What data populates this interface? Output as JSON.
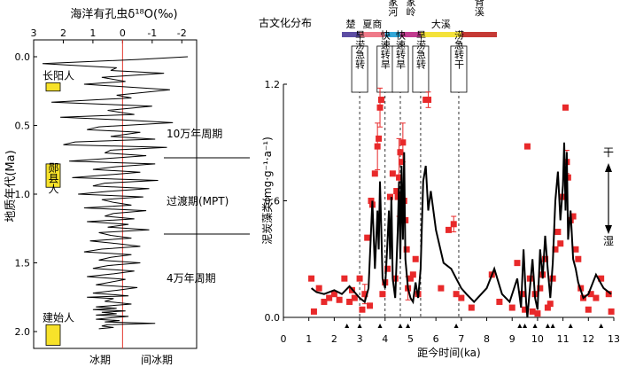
{
  "colors": {
    "axis": "#000000",
    "zero_line": "#e5362d",
    "marker": "#e8292a",
    "errorbar": "#e8292a",
    "line": "#000000",
    "human_box": "#f7e22a",
    "culture_bar": [
      "#5c4da3",
      "#ef7a89",
      "#33a7d8",
      "#c23b8f",
      "#f4e23a",
      "#c53a35"
    ]
  },
  "left_panel": {
    "title": "海洋有孔虫δ¹⁸O(‰)",
    "ylabel": "地质年代(Ma)",
    "x_ticks": [
      "3",
      "2",
      "1",
      "0",
      "-1",
      "-2"
    ],
    "y_ticks": [
      "0.0",
      "0.5",
      "1.0",
      "1.5",
      "2.0"
    ],
    "glacial_label": "冰期",
    "interglacial_label": "间冰期",
    "periods": {
      "p100k": "10万年周期",
      "mpt": "过渡期(MPT)",
      "p40k": "4万年周期"
    },
    "humans": [
      {
        "name": "长阳人",
        "age_top": 0.19,
        "age_bottom": 0.25
      },
      {
        "name": "郧县人",
        "age_top": 0.78,
        "age_bottom": 0.95
      },
      {
        "name": "建始人",
        "age_top": 1.95,
        "age_bottom": 2.1
      }
    ]
  },
  "right_panel": {
    "culture_title": "古文化分布",
    "cultures": [
      "楚",
      "夏商",
      "石家河",
      "屈家岭",
      "大溪",
      "城背溪"
    ],
    "events": [
      "旱涝急转",
      "快速转旱",
      "快速转旱",
      "旱涝急转",
      "涝急转干"
    ],
    "ylabel": "泥炭藻类(mg·g⁻¹·a⁻¹)",
    "xlabel": "距今时间(ka)",
    "x_ticks": [
      "0",
      "1",
      "2",
      "3",
      "4",
      "5",
      "6",
      "7",
      "8",
      "9",
      "10",
      "11",
      "12",
      "13"
    ],
    "y_ticks": [
      "0.0",
      "0.6",
      "1.2"
    ],
    "dry_label": "干",
    "wet_label": "湿"
  },
  "chart_data": [
    {
      "type": "line",
      "title": "海洋有孔虫δ¹⁸O(‰)",
      "xlabel": "海洋有孔虫δ¹⁸O(‰)",
      "ylabel": "地质年代(Ma)",
      "xlim": [
        3,
        -2.5
      ],
      "ylim": [
        0,
        2.0
      ],
      "series": [
        {
          "x": [
            -2.2,
            -0.5,
            2.7,
            0.2,
            0.4,
            -1.4,
            0.7,
            -0.1,
            1.3,
            -1.6,
            0.2,
            -0.3,
            2.4,
            -1.0,
            0.5,
            -0.4,
            2.1,
            0.0,
            -1.7,
            0.8,
            1.2,
            -0.6,
            0.4,
            -1.1,
            1.6,
            2.0,
            -1.5,
            0.4,
            0.6,
            -0.8,
            0.5,
            1.8,
            -1.1,
            0.2,
            1.0,
            -0.6,
            0.5,
            1.7,
            -1.2,
            0.6,
            1.0,
            -0.9,
            0.5,
            1.5,
            -0.7,
            0.7,
            0.3,
            -0.3,
            1.3,
            -0.8,
            0.3,
            0.6,
            -0.4,
            1.2,
            -0.2,
            0.5,
            -0.9,
            0.8,
            0.4,
            -0.3,
            1.1,
            0.2,
            -0.6,
            0.7,
            1.3,
            -0.3,
            0.4,
            0.8,
            -0.6,
            0.5,
            1.0,
            -0.4,
            0.3,
            1.2,
            -0.1,
            0.4,
            0.9,
            -0.5,
            0.2,
            1.0,
            -0.2,
            1.2,
            0.3,
            0.6,
            -0.3,
            0.9,
            0.2,
            1.0,
            -0.1,
            0.7,
            0.2,
            0.9,
            -0.2,
            0.4,
            0.9,
            0.1,
            0.6,
            -1.1,
            0.5,
            0.7,
            0.3,
            0.8
          ],
          "y": [
            0.0,
            0.02,
            0.05,
            0.08,
            0.1,
            0.12,
            0.15,
            0.18,
            0.2,
            0.24,
            0.28,
            0.3,
            0.33,
            0.36,
            0.39,
            0.42,
            0.44,
            0.46,
            0.48,
            0.51,
            0.53,
            0.55,
            0.58,
            0.6,
            0.62,
            0.64,
            0.66,
            0.68,
            0.7,
            0.72,
            0.74,
            0.76,
            0.78,
            0.8,
            0.82,
            0.84,
            0.86,
            0.88,
            0.9,
            0.92,
            0.94,
            0.96,
            0.98,
            1.0,
            1.02,
            1.04,
            1.06,
            1.08,
            1.1,
            1.12,
            1.14,
            1.16,
            1.18,
            1.2,
            1.22,
            1.24,
            1.26,
            1.28,
            1.3,
            1.32,
            1.34,
            1.36,
            1.38,
            1.4,
            1.42,
            1.44,
            1.46,
            1.48,
            1.5,
            1.52,
            1.54,
            1.56,
            1.58,
            1.6,
            1.62,
            1.64,
            1.66,
            1.68,
            1.7,
            1.72,
            1.74,
            1.75,
            1.76,
            1.78,
            1.8,
            1.82,
            1.83,
            1.84,
            1.85,
            1.86,
            1.87,
            1.88,
            1.89,
            1.9,
            1.91,
            1.92,
            1.93,
            1.94,
            1.95,
            1.96,
            1.97,
            1.98
          ]
        }
      ]
    },
    {
      "type": "scatter",
      "xlabel": "距今时间(ka)",
      "ylabel": "泥炭藻类(mg·g⁻¹·a⁻¹)",
      "xlim": [
        0,
        13
      ],
      "ylim": [
        0,
        1.2
      ],
      "series": [
        {
          "kind": "points",
          "points": [
            [
              1.1,
              0.2
            ],
            [
              1.2,
              0.03
            ],
            [
              1.4,
              0.15
            ],
            [
              1.6,
              0.08
            ],
            [
              1.8,
              0.1
            ],
            [
              2.0,
              0.12
            ],
            [
              2.2,
              0.09
            ],
            [
              2.4,
              0.2
            ],
            [
              2.6,
              0.08
            ],
            [
              2.7,
              0.14
            ],
            [
              2.8,
              0.1
            ],
            [
              3.0,
              0.2
            ],
            [
              3.1,
              0.04
            ],
            [
              3.2,
              0.12
            ],
            [
              3.3,
              0.41
            ],
            [
              3.4,
              0.06
            ],
            [
              3.45,
              0.6
            ],
            [
              3.5,
              0.58
            ],
            [
              3.6,
              0.74
            ],
            [
              3.7,
              0.88
            ],
            [
              3.75,
              0.92
            ],
            [
              3.8,
              1.08
            ],
            [
              3.85,
              1.12
            ],
            [
              3.9,
              0.12
            ],
            [
              4.0,
              0.18
            ],
            [
              4.1,
              0.25
            ],
            [
              4.2,
              0.62
            ],
            [
              4.3,
              0.74
            ],
            [
              4.4,
              0.2
            ],
            [
              4.45,
              0.65
            ],
            [
              4.5,
              0.62
            ],
            [
              4.55,
              0.72
            ],
            [
              4.6,
              0.85
            ],
            [
              4.65,
              0.8
            ],
            [
              4.7,
              0.9
            ],
            [
              4.75,
              0.6
            ],
            [
              4.8,
              0.5
            ],
            [
              4.85,
              0.35
            ],
            [
              4.9,
              0.15
            ],
            [
              5.0,
              0.2
            ],
            [
              5.1,
              0.22
            ],
            [
              5.2,
              0.3
            ],
            [
              5.3,
              0.12
            ],
            [
              5.6,
              1.12
            ],
            [
              5.7,
              1.12
            ],
            [
              6.2,
              0.15
            ],
            [
              6.5,
              0.45
            ],
            [
              6.7,
              0.48
            ],
            [
              6.8,
              0.12
            ],
            [
              7.0,
              0.1
            ],
            [
              7.4,
              0.05
            ],
            [
              8.2,
              0.22
            ],
            [
              8.5,
              0.08
            ],
            [
              9.0,
              0.05
            ],
            [
              9.2,
              0.28
            ],
            [
              9.4,
              0.12
            ],
            [
              9.5,
              0.04
            ],
            [
              9.6,
              0.88
            ],
            [
              9.7,
              0.2
            ],
            [
              9.8,
              0.03
            ],
            [
              9.9,
              0.12
            ],
            [
              10.0,
              0.02
            ],
            [
              10.1,
              0.15
            ],
            [
              10.2,
              0.22
            ],
            [
              10.3,
              0.3
            ],
            [
              10.4,
              0.05
            ],
            [
              10.5,
              0.07
            ],
            [
              10.6,
              0.2
            ],
            [
              10.7,
              0.35
            ],
            [
              10.8,
              0.44
            ],
            [
              10.9,
              0.38
            ],
            [
              11.0,
              0.62
            ],
            [
              11.1,
              1.08
            ],
            [
              11.15,
              0.8
            ],
            [
              11.2,
              0.72
            ],
            [
              11.3,
              0.5
            ],
            [
              11.4,
              0.52
            ],
            [
              11.5,
              0.35
            ],
            [
              11.6,
              0.3
            ],
            [
              11.7,
              0.15
            ],
            [
              11.8,
              0.1
            ],
            [
              12.0,
              0.04
            ],
            [
              12.1,
              0.12
            ],
            [
              12.3,
              0.1
            ],
            [
              12.5,
              0.2
            ],
            [
              12.8,
              0.12
            ],
            [
              12.9,
              0.03
            ]
          ]
        },
        {
          "kind": "line",
          "x": [
            1.1,
            1.3,
            1.6,
            2.0,
            2.3,
            2.6,
            2.8,
            3.0,
            3.2,
            3.35,
            3.5,
            3.6,
            3.7,
            3.75,
            3.8,
            3.85,
            3.9,
            4.0,
            4.1,
            4.15,
            4.2,
            4.25,
            4.3,
            4.4,
            4.5,
            4.55,
            4.6,
            4.65,
            4.7,
            4.75,
            4.8,
            4.9,
            5.0,
            5.1,
            5.2,
            5.3,
            5.4,
            5.5,
            5.6,
            5.7,
            5.8,
            6.0,
            6.3,
            6.6,
            6.8,
            7.0,
            7.2,
            7.5,
            8.0,
            8.3,
            8.6,
            8.9,
            9.2,
            9.35,
            9.45,
            9.55,
            9.6,
            9.7,
            9.8,
            9.9,
            10.0,
            10.1,
            10.2,
            10.3,
            10.4,
            10.5,
            10.6,
            10.7,
            10.8,
            10.9,
            11.0,
            11.05,
            11.1,
            11.15,
            11.2,
            11.3,
            11.4,
            11.5,
            11.6,
            11.8,
            12.0,
            12.3,
            12.6,
            12.9
          ],
          "y": [
            0.15,
            0.13,
            0.12,
            0.14,
            0.12,
            0.16,
            0.13,
            0.1,
            0.08,
            0.15,
            0.6,
            0.25,
            0.55,
            0.35,
            0.7,
            0.45,
            0.2,
            0.15,
            0.4,
            0.55,
            0.3,
            0.62,
            0.2,
            0.1,
            0.45,
            0.7,
            0.3,
            0.78,
            0.4,
            0.85,
            0.3,
            0.15,
            0.1,
            0.08,
            0.18,
            0.1,
            0.25,
            0.7,
            0.78,
            0.55,
            0.65,
            0.45,
            0.28,
            0.25,
            0.2,
            0.15,
            0.12,
            0.08,
            0.15,
            0.25,
            0.12,
            0.08,
            0.2,
            0.05,
            0.35,
            0.08,
            0.0,
            0.15,
            0.3,
            0.1,
            0.04,
            0.35,
            0.2,
            0.42,
            0.25,
            0.1,
            0.28,
            0.6,
            0.75,
            0.5,
            0.68,
            0.9,
            0.55,
            0.85,
            0.4,
            0.55,
            0.3,
            0.25,
            0.18,
            0.1,
            0.12,
            0.22,
            0.15,
            0.12
          ]
        }
      ],
      "error_bars": [
        {
          "x": 3.8,
          "y": 1.08,
          "err": 0.1
        },
        {
          "x": 3.7,
          "y": 0.88,
          "err": 0.12
        },
        {
          "x": 4.7,
          "y": 0.9,
          "err": 0.1
        },
        {
          "x": 4.55,
          "y": 0.72,
          "err": 0.2
        },
        {
          "x": 5.7,
          "y": 1.12,
          "err": 0.04
        },
        {
          "x": 6.7,
          "y": 0.48,
          "err": 0.04
        },
        {
          "x": 11.15,
          "y": 0.8,
          "err": 0.06
        },
        {
          "x": 3.2,
          "y": 0.12,
          "err": 0.05
        },
        {
          "x": 4.9,
          "y": 0.15,
          "err": 0.06
        }
      ],
      "event_lines_x": [
        3.0,
        4.0,
        4.6,
        5.4,
        6.9
      ],
      "ticks_marked_x": [
        2.5,
        3.0,
        3.8,
        4.6,
        4.9,
        6.8,
        9.3,
        9.5,
        9.9,
        10.4,
        10.6,
        11.3,
        12.5
      ]
    }
  ]
}
